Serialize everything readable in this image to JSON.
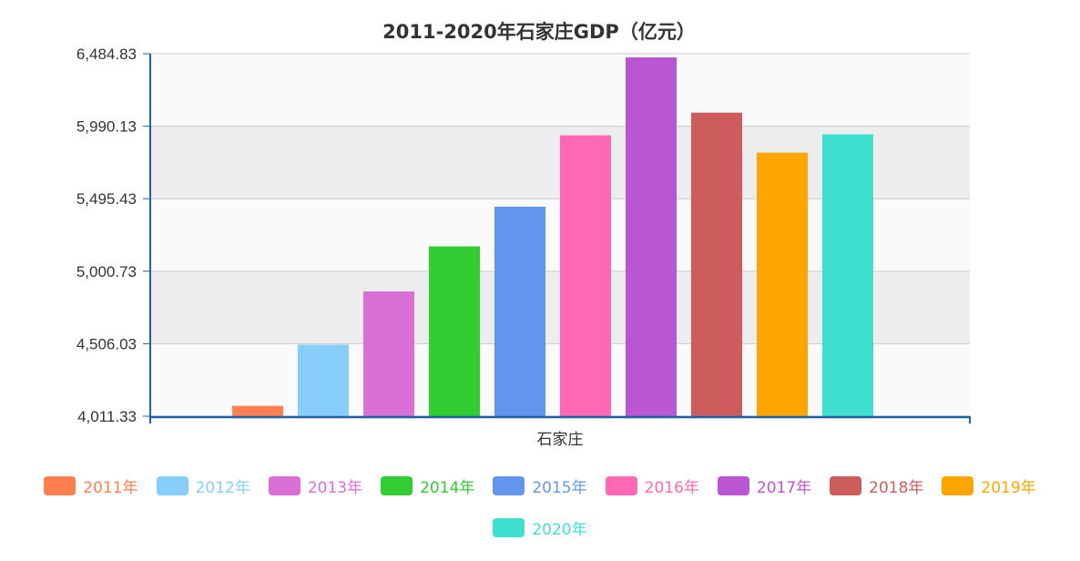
{
  "chart_data": {
    "type": "bar",
    "title": "2011-2020年石家庄GDP（亿元）",
    "categories": [
      "石家庄"
    ],
    "xlabel": "石家庄",
    "ylabel": "",
    "ylim": [
      4011.33,
      6484.83
    ],
    "yticks": [
      "4,011.33",
      "4,506.03",
      "5,000.73",
      "5,495.43",
      "5,990.13",
      "6,484.83"
    ],
    "grid": true,
    "legend_position": "bottom",
    "series": [
      {
        "name": "2011年",
        "values": [
          4082
        ],
        "color": "#FF7F50"
      },
      {
        "name": "2012年",
        "values": [
          4500
        ],
        "color": "#87CEFA"
      },
      {
        "name": "2013年",
        "values": [
          4863
        ],
        "color": "#DA70D6"
      },
      {
        "name": "2014年",
        "values": [
          5170
        ],
        "color": "#32CD32"
      },
      {
        "name": "2015年",
        "values": [
          5441
        ],
        "color": "#6495ED"
      },
      {
        "name": "2016年",
        "values": [
          5928
        ],
        "color": "#FF69B4"
      },
      {
        "name": "2017年",
        "values": [
          6460
        ],
        "color": "#BA55D3"
      },
      {
        "name": "2018年",
        "values": [
          6083
        ],
        "color": "#CD5C5C"
      },
      {
        "name": "2019年",
        "values": [
          5810
        ],
        "color": "#FFA500"
      },
      {
        "name": "2020年",
        "values": [
          5935
        ],
        "color": "#40E0D0"
      }
    ]
  }
}
